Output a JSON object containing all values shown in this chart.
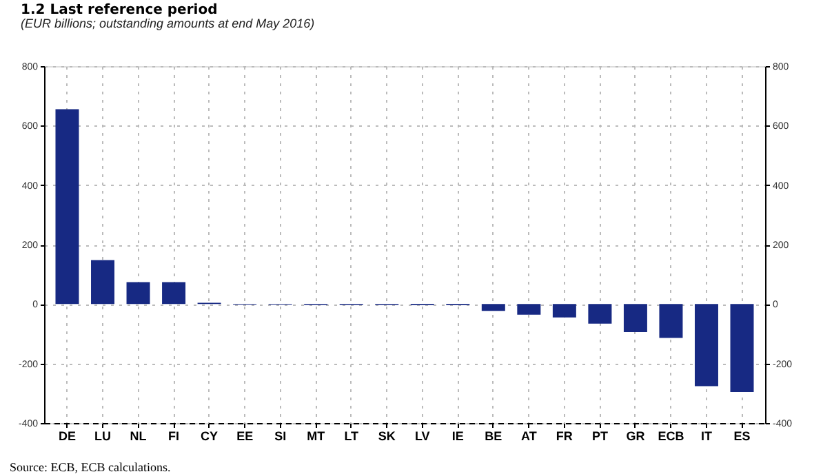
{
  "chart_data": {
    "type": "bar",
    "title": "1.2 Last reference period",
    "subtitle": "(EUR billions; outstanding amounts at end May 2016)",
    "categories": [
      "DE",
      "LU",
      "NL",
      "FI",
      "CY",
      "EE",
      "SI",
      "MT",
      "LT",
      "SK",
      "LV",
      "IE",
      "BE",
      "AT",
      "FR",
      "PT",
      "GR",
      "ECB",
      "IT",
      "ES"
    ],
    "values": [
      655,
      148,
      74,
      74,
      4,
      -2,
      -2,
      -3,
      -3,
      -3,
      -4,
      -4,
      -23,
      -36,
      -45,
      -66,
      -94,
      -114,
      -276,
      -296
    ],
    "color": "#172983",
    "ylim": [
      -400,
      800
    ],
    "yticks": [
      -400,
      -200,
      0,
      200,
      400,
      600,
      800
    ],
    "y2lim": [
      -400,
      800
    ],
    "y2ticks": [
      -400,
      -200,
      0,
      200,
      400,
      600,
      800
    ],
    "grid": true,
    "annotations": [
      "Source: ECB, ECB calculations."
    ]
  }
}
